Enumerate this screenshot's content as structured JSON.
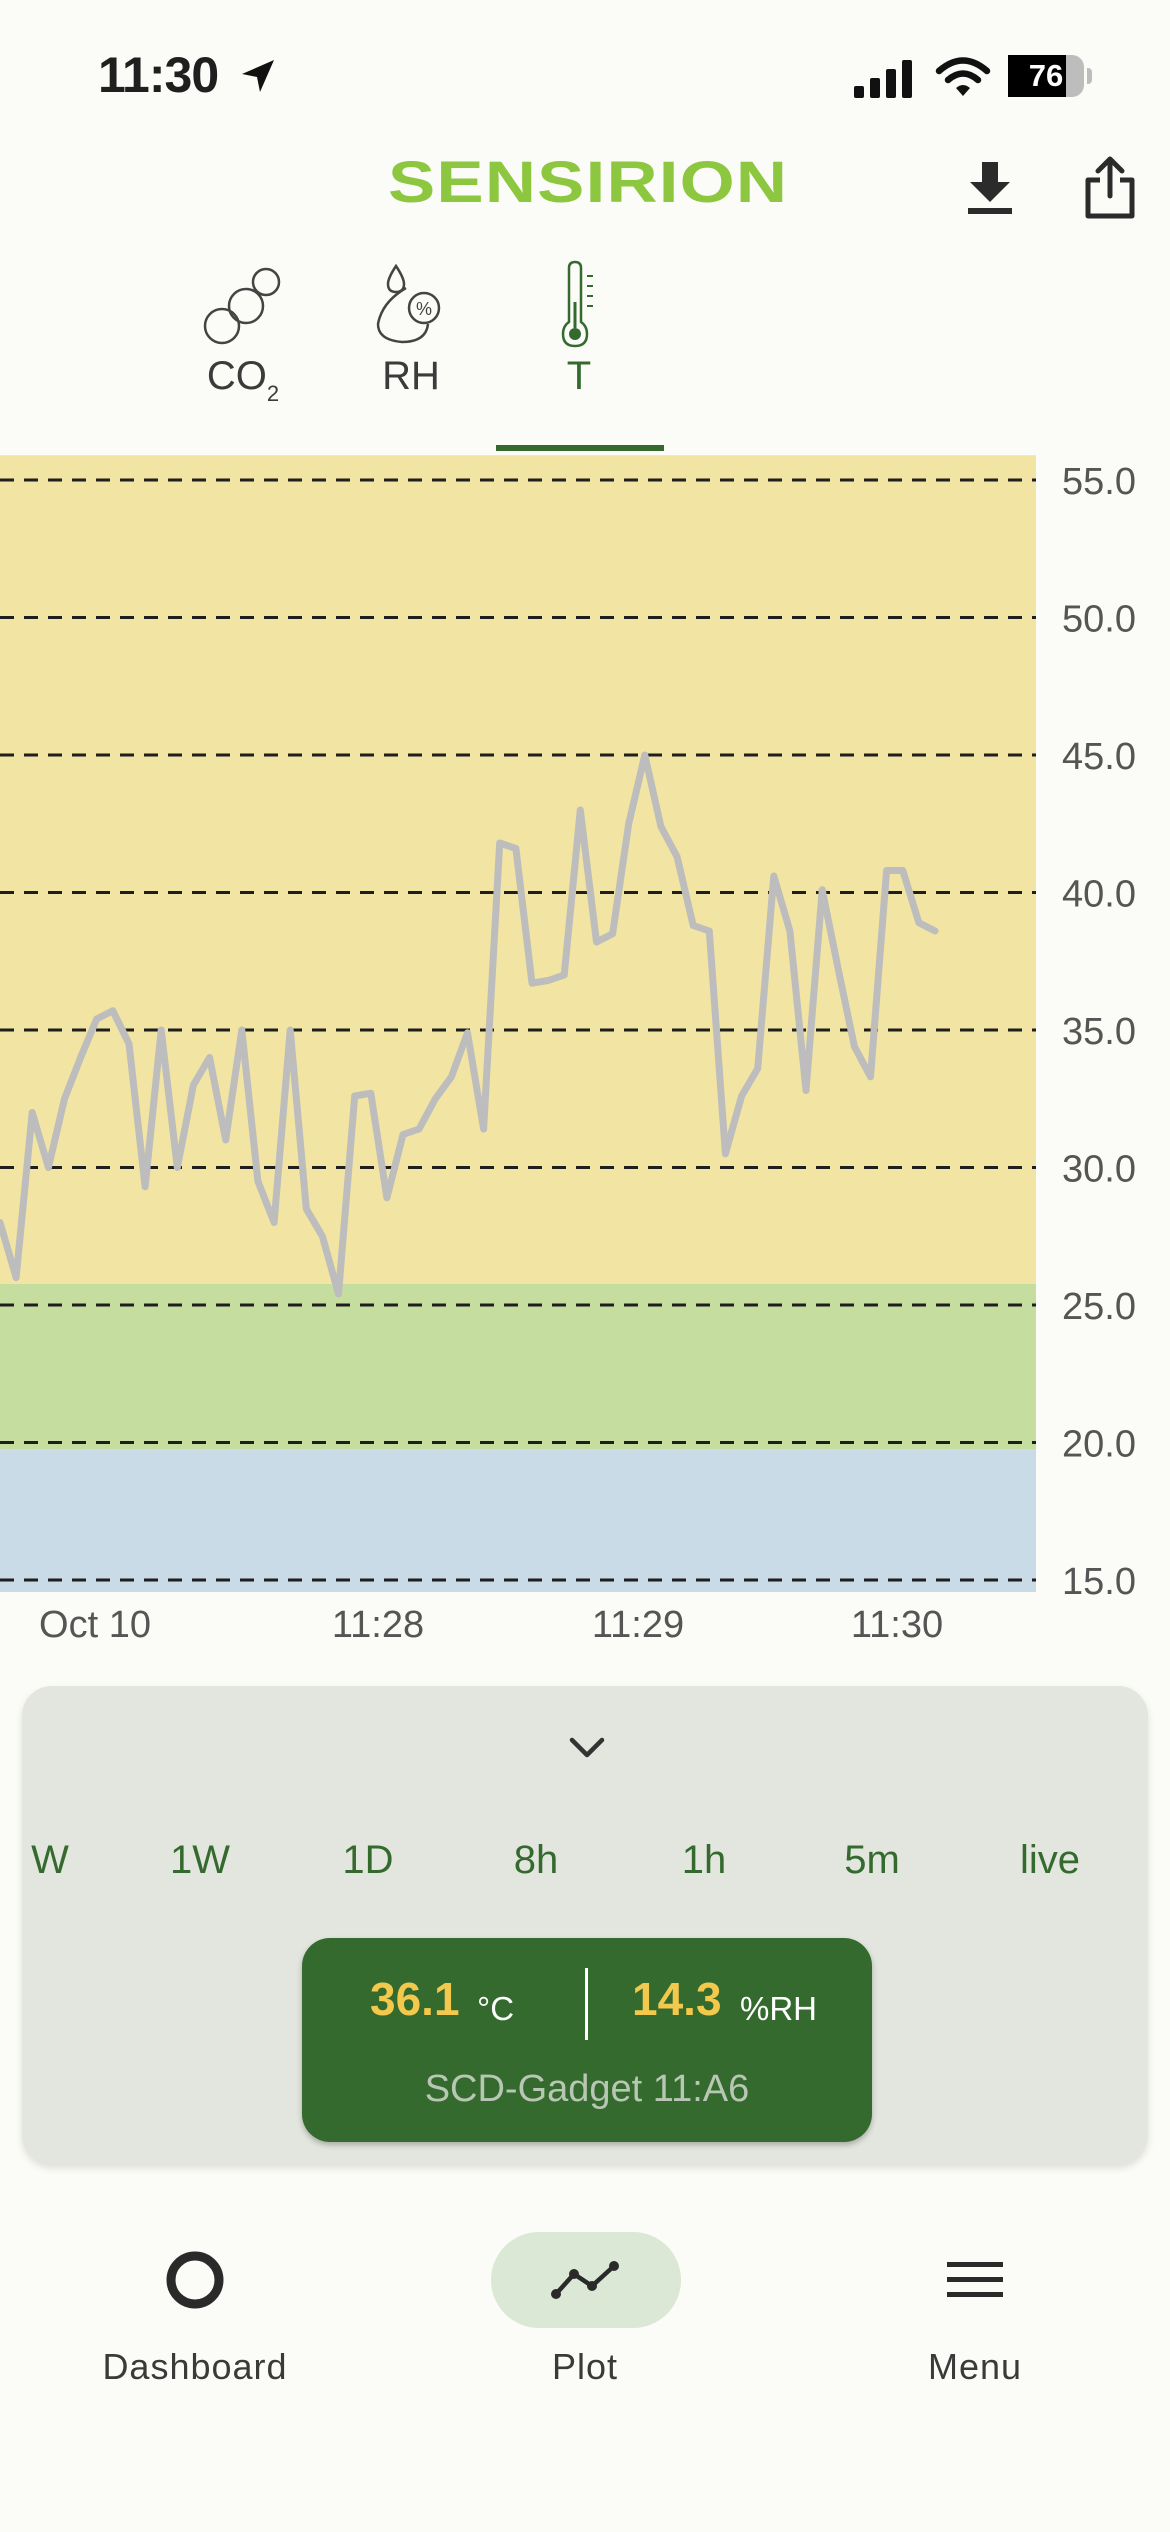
{
  "status_bar": {
    "time": "11:30",
    "battery": "76",
    "battery_level": 0.76
  },
  "header": {
    "brand": "SENSIRION",
    "download_icon": "download-icon",
    "share_icon": "share-icon"
  },
  "sensor_tabs": [
    {
      "label": "CO",
      "sub": "2",
      "icon": "co2-bubbles-icon",
      "selected": false
    },
    {
      "label": "RH",
      "icon": "humidity-drop-icon",
      "selected": false
    },
    {
      "label": "T",
      "icon": "thermometer-icon",
      "selected": true
    }
  ],
  "chart_data": {
    "type": "line",
    "title": "",
    "xlabel": "",
    "ylabel": "",
    "ylim": [
      15,
      55
    ],
    "y_ticks": [
      "55.0",
      "50.0",
      "45.0",
      "40.0",
      "35.0",
      "30.0",
      "25.0",
      "20.0",
      "15.0"
    ],
    "x_ticks": [
      "Oct 10",
      "11:28",
      "11:29",
      "11:30"
    ],
    "grid": true,
    "bands": [
      {
        "from": 15,
        "to": 20.2,
        "color": "#c9dbe6"
      },
      {
        "from": 20.2,
        "to": 26.2,
        "color": "#c5dd9f"
      },
      {
        "from": 26.2,
        "to": 55.9,
        "color": "#f2e4a2"
      }
    ],
    "line_color": "#bdbdbd",
    "series": [
      {
        "values": [
          28.0,
          26.0,
          32.0,
          30.0,
          32.5,
          34.0,
          35.4,
          35.7,
          34.5,
          29.3,
          35.0,
          30.0,
          33.0,
          34.0,
          31.0,
          35.0,
          29.5,
          28.0,
          35.0,
          28.5,
          27.5,
          25.4,
          32.6,
          32.7,
          28.9,
          31.2,
          31.4,
          32.5,
          33.3,
          34.9,
          31.4,
          41.8,
          41.6,
          36.7,
          36.8,
          37.0,
          43.0,
          38.2,
          38.5,
          42.5,
          45.0,
          42.4,
          41.3,
          38.8,
          38.6,
          30.5,
          32.6,
          33.6,
          40.6,
          38.6,
          32.8,
          40.1,
          37.2,
          34.4,
          33.3,
          40.8,
          40.8,
          38.9,
          38.6
        ]
      }
    ]
  },
  "panel": {
    "chevron_icon": "chevron-down-icon",
    "ranges": [
      "W",
      "1W",
      "1D",
      "8h",
      "1h",
      "5m",
      "live"
    ],
    "readout": {
      "temperature": "36.1",
      "temperature_unit": "°C",
      "humidity": "14.3",
      "humidity_unit": "%RH",
      "device": "SCD-Gadget 11:A6"
    }
  },
  "nav": [
    {
      "label": "Dashboard",
      "icon": "dashboard-ring-icon",
      "selected": false
    },
    {
      "label": "Plot",
      "icon": "plot-line-icon",
      "selected": true
    },
    {
      "label": "Menu",
      "icon": "menu-icon",
      "selected": false
    }
  ],
  "colors": {
    "accent": "#356a2f",
    "brand": "#8dc63f",
    "highlight": "#f2c94c",
    "nav_pill": "#dbe8d5",
    "panel": "#e2e6de"
  }
}
